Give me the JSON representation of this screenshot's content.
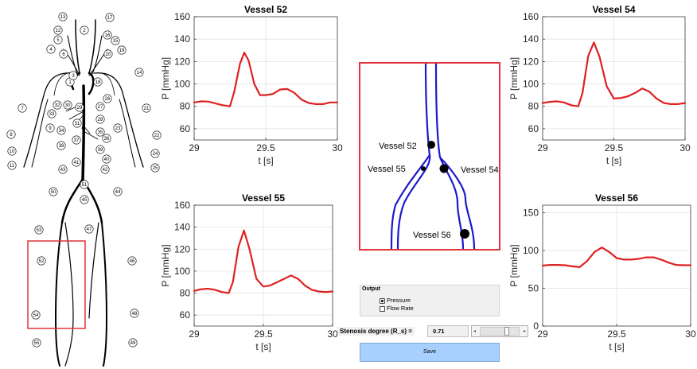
{
  "anatomy": {
    "labels": [
      "1",
      "2",
      "3",
      "4",
      "5",
      "6",
      "7",
      "8",
      "9",
      "10",
      "11",
      "12",
      "13",
      "14",
      "15",
      "16",
      "17",
      "18",
      "19",
      "20",
      "21",
      "22",
      "23",
      "24",
      "25",
      "26",
      "27",
      "28",
      "29",
      "30",
      "31",
      "32",
      "33",
      "34",
      "35",
      "36",
      "37",
      "38",
      "39",
      "40",
      "41",
      "42",
      "43",
      "44",
      "45",
      "46",
      "47",
      "48",
      "49",
      "50",
      "51",
      "52",
      "53",
      "54",
      "55"
    ]
  },
  "detail": {
    "labels": {
      "v52": "Vessel 52",
      "v55": "Vessel 55",
      "v54": "Vessel 54",
      "v56": "Vessel 56"
    }
  },
  "colors": {
    "trace": "#e02020",
    "vessel": "#1a1acc",
    "frame": "#e0343c",
    "button": "#a8d0ff"
  },
  "chart_data": [
    {
      "type": "line",
      "title": "Vessel 52",
      "xlabel": "t [s]",
      "ylabel": "P [mmHg]",
      "xlim": [
        29,
        30
      ],
      "ylim": [
        50,
        160
      ],
      "xticks": [
        29,
        29.5,
        30
      ],
      "xtick_labels": [
        "29",
        "29.5",
        "30"
      ],
      "yticks": [
        60,
        80,
        100,
        120,
        140,
        160
      ],
      "grid": true,
      "series": [
        {
          "x": [
            29.0,
            29.05,
            29.1,
            29.2,
            29.25,
            29.28,
            29.32,
            29.35,
            29.38,
            29.42,
            29.46,
            29.5,
            29.55,
            29.6,
            29.65,
            29.7,
            29.75,
            29.8,
            29.85,
            29.9,
            29.95,
            30.0
          ],
          "y": [
            83.5,
            84.5,
            84.2,
            81,
            80,
            93,
            118,
            128,
            121,
            100,
            90,
            90,
            91,
            95,
            95.5,
            92,
            86,
            83,
            82,
            82,
            83.5,
            83.5
          ]
        }
      ]
    },
    {
      "type": "line",
      "title": "Vessel 55",
      "xlabel": "t [s]",
      "ylabel": "P [mmHg]",
      "xlim": [
        29,
        30
      ],
      "ylim": [
        50,
        160
      ],
      "xticks": [
        29,
        29.5,
        30
      ],
      "xtick_labels": [
        "29",
        "29.5",
        "30"
      ],
      "yticks": [
        60,
        80,
        100,
        120,
        140,
        160
      ],
      "grid": true,
      "series": [
        {
          "x": [
            29.0,
            29.05,
            29.1,
            29.15,
            29.2,
            29.25,
            29.28,
            29.32,
            29.36,
            29.4,
            29.45,
            29.5,
            29.55,
            29.6,
            29.65,
            29.7,
            29.75,
            29.8,
            29.85,
            29.9,
            29.95,
            30.0
          ],
          "y": [
            82,
            83.5,
            84,
            83,
            81,
            80,
            90,
            122,
            137,
            120,
            93,
            86,
            87,
            90,
            93,
            96,
            93,
            87,
            83,
            81.5,
            81,
            81.5
          ]
        }
      ]
    },
    {
      "type": "line",
      "title": "Vessel 54",
      "xlabel": "t [s]",
      "ylabel": "P [mmHg]",
      "xlim": [
        29,
        30
      ],
      "ylim": [
        50,
        160
      ],
      "xticks": [
        29,
        29.5,
        30
      ],
      "xtick_labels": [
        "29",
        "29.5",
        "30"
      ],
      "yticks": [
        60,
        80,
        100,
        120,
        140,
        160
      ],
      "grid": true,
      "series": [
        {
          "x": [
            29.0,
            29.05,
            29.1,
            29.15,
            29.2,
            29.25,
            29.28,
            29.32,
            29.36,
            29.4,
            29.45,
            29.5,
            29.55,
            29.6,
            29.65,
            29.7,
            29.75,
            29.8,
            29.85,
            29.9,
            29.95,
            30.0
          ],
          "y": [
            83,
            84,
            84.5,
            83.5,
            81,
            80,
            92,
            125,
            137,
            124,
            98,
            87,
            87.5,
            89,
            92,
            96,
            93,
            87,
            83,
            82,
            82,
            83
          ]
        }
      ]
    },
    {
      "type": "line",
      "title": "Vessel 56",
      "xlabel": "t [s]",
      "ylabel": "P [mmHg]",
      "xlim": [
        29,
        30
      ],
      "ylim": [
        0,
        160
      ],
      "xticks": [
        29,
        29.5,
        30
      ],
      "xtick_labels": [
        "29",
        "29.5",
        "30"
      ],
      "yticks": [
        0,
        50,
        100,
        150
      ],
      "grid": true,
      "series": [
        {
          "x": [
            29.0,
            29.05,
            29.1,
            29.15,
            29.2,
            29.25,
            29.3,
            29.35,
            29.4,
            29.45,
            29.5,
            29.55,
            29.6,
            29.65,
            29.7,
            29.75,
            29.8,
            29.85,
            29.9,
            29.95,
            30.0
          ],
          "y": [
            80,
            81,
            81,
            80.5,
            79,
            78,
            86,
            98,
            104,
            98,
            90,
            88,
            88,
            89,
            91,
            91,
            88,
            84,
            81,
            80.5,
            80.5
          ]
        }
      ]
    }
  ],
  "controls": {
    "output_title": "Output",
    "pressure_label": "Pressure",
    "pressure_checked": true,
    "flowrate_label": "Flow Rate",
    "flowrate_checked": false,
    "stenosis_label": "Stenosis degree (R_s) =",
    "stenosis_value": "0.71",
    "stenosis_slider_value": 0.71,
    "save_label": "Save"
  }
}
